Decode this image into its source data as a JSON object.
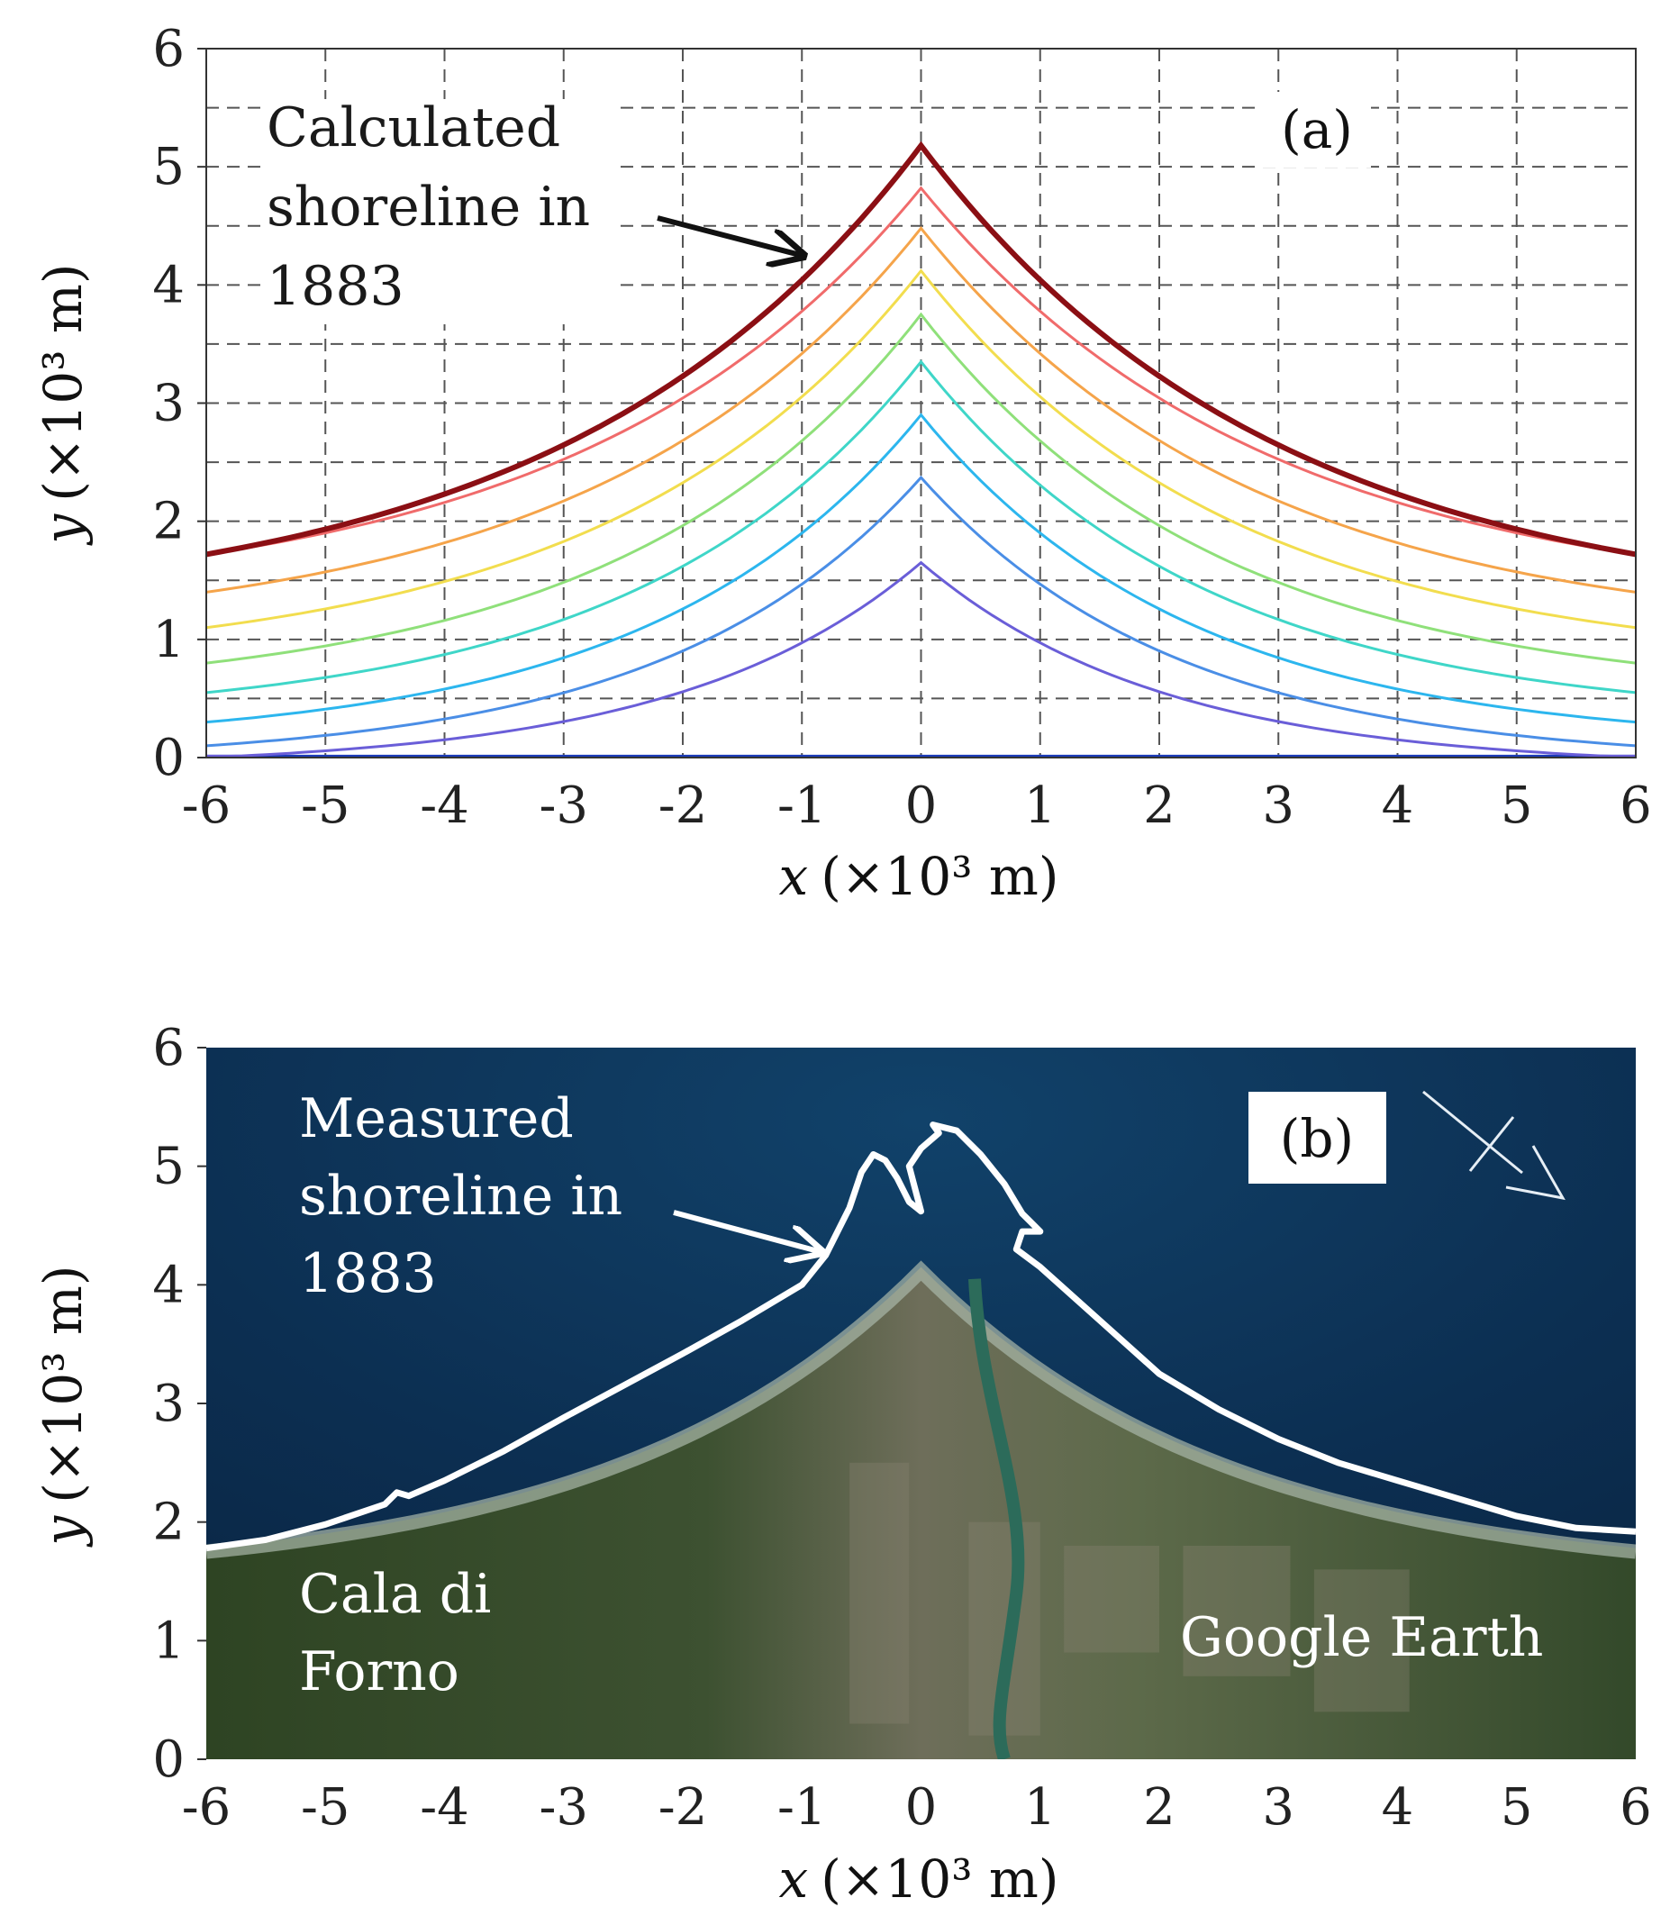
{
  "chart_data": [
    {
      "type": "line",
      "panel_label": "(a)",
      "xlabel_var": "x",
      "xlabel_unit": "(×10³ m)",
      "ylabel_var": "y",
      "ylabel_unit": "(×10³ m)",
      "xlim": [
        -6,
        6
      ],
      "ylim": [
        0,
        6
      ],
      "xticks": [
        "-6",
        "-5",
        "-4",
        "-3",
        "-2",
        "-1",
        "0",
        "1",
        "2",
        "3",
        "4",
        "5",
        "6"
      ],
      "yticks": [
        "0",
        "1",
        "2",
        "3",
        "4",
        "5",
        "6"
      ],
      "grid": true,
      "annotation": {
        "lines": [
          "Calculated",
          "shoreline in",
          "1883"
        ],
        "points_to": {
          "x": -0.9,
          "y": 4.2
        }
      },
      "series": [
        {
          "color": "#1a3ab8",
          "values": {
            "peak": 0.0,
            "edge": 0.0
          }
        },
        {
          "color": "#6a5ed8",
          "values": {
            "peak": 1.65,
            "edge": 0.0
          }
        },
        {
          "color": "#4a8ee6",
          "values": {
            "peak": 2.37,
            "edge": 0.1
          }
        },
        {
          "color": "#2cb6ee",
          "values": {
            "peak": 2.9,
            "edge": 0.3
          }
        },
        {
          "color": "#3fd6c8",
          "values": {
            "peak": 3.35,
            "edge": 0.55
          }
        },
        {
          "color": "#8fe07a",
          "values": {
            "peak": 3.75,
            "edge": 0.8
          }
        },
        {
          "color": "#f2dd4e",
          "values": {
            "peak": 4.12,
            "edge": 1.1
          }
        },
        {
          "color": "#f5a44a",
          "values": {
            "peak": 4.48,
            "edge": 1.4
          }
        },
        {
          "color": "#f06b6b",
          "values": {
            "peak": 4.82,
            "edge": 1.72
          }
        },
        {
          "color": "#8b0f14",
          "values": {
            "peak": 5.18,
            "edge": 1.72
          }
        }
      ]
    },
    {
      "type": "image",
      "panel_label": "(b)",
      "xlabel_var": "x",
      "xlabel_unit": "(×10³ m)",
      "ylabel_var": "y",
      "ylabel_unit": "(×10³ m)",
      "xlim": [
        -6,
        6
      ],
      "ylim": [
        0,
        6
      ],
      "xticks": [
        "-6",
        "-5",
        "-4",
        "-3",
        "-2",
        "-1",
        "0",
        "1",
        "2",
        "3",
        "4",
        "5",
        "6"
      ],
      "yticks": [
        "0",
        "1",
        "2",
        "3",
        "4",
        "5",
        "6"
      ],
      "annotation": {
        "lines": [
          "Measured",
          "shoreline in",
          "1883"
        ]
      },
      "place_labels": {
        "left": [
          "Cala di",
          "Forno"
        ],
        "right": "Google Earth"
      },
      "measured_shoreline": {
        "x": [
          -6,
          -5.5,
          -5,
          -4.5,
          -4.4,
          -4.3,
          -4,
          -3.5,
          -3,
          -2.5,
          -2,
          -1.5,
          -1,
          -0.8,
          -0.6,
          -0.5,
          -0.4,
          -0.3,
          -0.2,
          -0.1,
          0,
          -0.1,
          0.0,
          0.15,
          0.1,
          0.3,
          0.5,
          0.7,
          0.85,
          1.0,
          0.85,
          0.8,
          1.0,
          1.5,
          2,
          2.5,
          3,
          3.5,
          4,
          4.5,
          5,
          5.5,
          6
        ],
        "y": [
          1.78,
          1.85,
          1.98,
          2.15,
          2.25,
          2.22,
          2.35,
          2.6,
          2.88,
          3.15,
          3.42,
          3.7,
          4.0,
          4.25,
          4.65,
          4.95,
          5.1,
          5.05,
          4.9,
          4.7,
          4.62,
          5.0,
          5.15,
          5.28,
          5.35,
          5.3,
          5.1,
          4.85,
          4.6,
          4.45,
          4.45,
          4.3,
          4.15,
          3.7,
          3.25,
          2.95,
          2.7,
          2.5,
          2.35,
          2.2,
          2.05,
          1.95,
          1.92
        ]
      }
    }
  ]
}
